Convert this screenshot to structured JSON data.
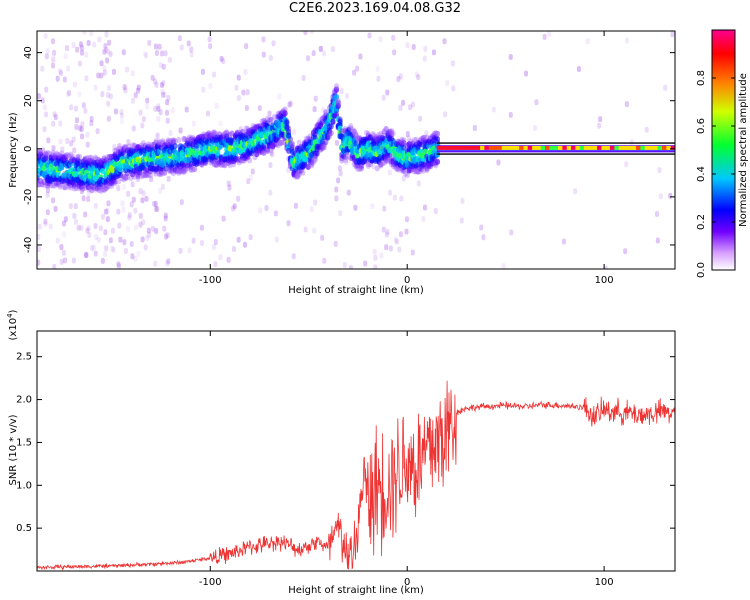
{
  "title": "C2E6.2023.169.04.08.G32",
  "chart_data": [
    {
      "type": "heatmap",
      "xlabel": "Height of straight line (km)",
      "ylabel": "Frequency (Hz)",
      "xlim": [
        -188,
        136
      ],
      "ylim": [
        -50,
        49
      ],
      "x_ticks": [
        -100,
        0,
        100
      ],
      "y_ticks": [
        -40,
        -20,
        0,
        20,
        40
      ],
      "colorbar": {
        "label": "Normalized spectral amplitude",
        "range": [
          0.0,
          1.0
        ],
        "ticks": [
          "0.0",
          "0.2",
          "0.4",
          "0.6",
          "0.8"
        ],
        "colors": [
          "#ffffff",
          "#c070ff",
          "#5000ff",
          "#0000ff",
          "#00c8ff",
          "#00ff40",
          "#ffff00",
          "#ff8000",
          "#ff0000",
          "#ff0080"
        ]
      },
      "ridge": {
        "x": [
          -188,
          -175,
          -165,
          -155,
          -145,
          -130,
          -115,
          -100,
          -90,
          -80,
          -70,
          -62,
          -58,
          -50,
          -45,
          -40,
          -36,
          -33,
          -30,
          -25,
          -20,
          -15,
          -10,
          -5,
          0,
          5,
          10,
          15,
          136
        ],
        "y": [
          -8,
          -9,
          -10,
          -11,
          -6,
          -4,
          -3,
          0,
          0,
          2,
          6,
          10,
          -6,
          -2,
          4,
          10,
          20,
          0,
          4,
          -2,
          0,
          -2,
          2,
          -2,
          -4,
          -3,
          -2,
          0,
          0
        ]
      }
    },
    {
      "type": "line",
      "xlabel": "Height of straight line (km)",
      "ylabel": "SNR (10 * v/v)",
      "y_multiplier": "(x10",
      "y_multiplier_exp": "4",
      "xlim": [
        -188,
        136
      ],
      "ylim": [
        0,
        2.8
      ],
      "x_ticks": [
        -100,
        0,
        100
      ],
      "y_ticks": [
        0.5,
        1.0,
        1.5,
        2.0,
        2.5
      ],
      "series": [
        {
          "color": "#ee3333",
          "x": [
            -188,
            -170,
            -150,
            -130,
            -115,
            -100,
            -90,
            -80,
            -70,
            -65,
            -60,
            -55,
            -50,
            -45,
            -40,
            -35,
            -32,
            -30,
            -28,
            -25,
            -22,
            -20,
            -15,
            -10,
            -5,
            0,
            5,
            10,
            15,
            20,
            23,
            25,
            30,
            40,
            50,
            60,
            70,
            80,
            90,
            95,
            100,
            110,
            120,
            130,
            136
          ],
          "y": [
            0.04,
            0.05,
            0.06,
            0.08,
            0.1,
            0.15,
            0.2,
            0.28,
            0.32,
            0.35,
            0.3,
            0.25,
            0.3,
            0.35,
            0.25,
            0.5,
            0.3,
            0.15,
            0.25,
            0.45,
            1.2,
            0.8,
            1.0,
            1.0,
            1.2,
            1.3,
            1.2,
            1.4,
            1.5,
            1.6,
            1.75,
            1.85,
            1.9,
            1.92,
            1.93,
            1.92,
            1.94,
            1.93,
            1.91,
            1.8,
            1.88,
            1.85,
            1.82,
            1.86,
            1.84
          ]
        }
      ]
    }
  ]
}
